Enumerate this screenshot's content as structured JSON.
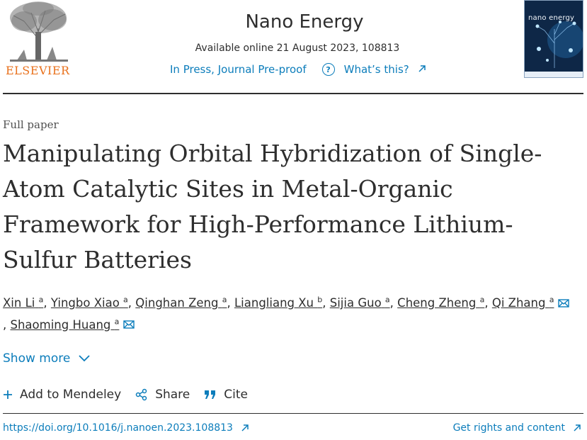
{
  "publisher": {
    "name": "ELSEVIER"
  },
  "journal": {
    "name": "Nano Energy",
    "availability": "Available online 21 August 2023, 108813",
    "status": "In Press, Journal Pre-proof",
    "whats_this": "What’s this?",
    "cover_title": "nano energy"
  },
  "article": {
    "type": "Full paper",
    "title": "Manipulating Orbital Hybridization of Single-Atom Catalytic Sites in Metal-Organic Framework for High-Performance Lithium-Sulfur Batteries",
    "authors": [
      {
        "name": "Xin Li",
        "aff": "a",
        "sep": ", "
      },
      {
        "name": "Yingbo Xiao",
        "aff": "a",
        "sep": ", "
      },
      {
        "name": "Qinghan Zeng",
        "aff": "a",
        "sep": ", "
      },
      {
        "name": "Liangliang Xu",
        "aff": "b",
        "sep": ", "
      },
      {
        "name": "Sijia Guo",
        "aff": "a",
        "sep": ", "
      },
      {
        "name": "Cheng Zheng",
        "aff": "a",
        "sep": ", "
      },
      {
        "name": "Qi Zhang",
        "aff": "a",
        "sep": ""
      },
      {
        "name": "Shaoming Huang",
        "aff": "a",
        "sep": ""
      }
    ],
    "show_more": "Show more"
  },
  "actions": {
    "add_mendeley": "Add to Mendeley",
    "share": "Share",
    "cite": "Cite"
  },
  "footer": {
    "doi": "https://doi.org/10.1016/j.nanoen.2023.108813",
    "rights": "Get rights and content"
  },
  "colors": {
    "link": "#0c7dbb",
    "text": "#2e2e2e",
    "logo": "#e9711c"
  }
}
